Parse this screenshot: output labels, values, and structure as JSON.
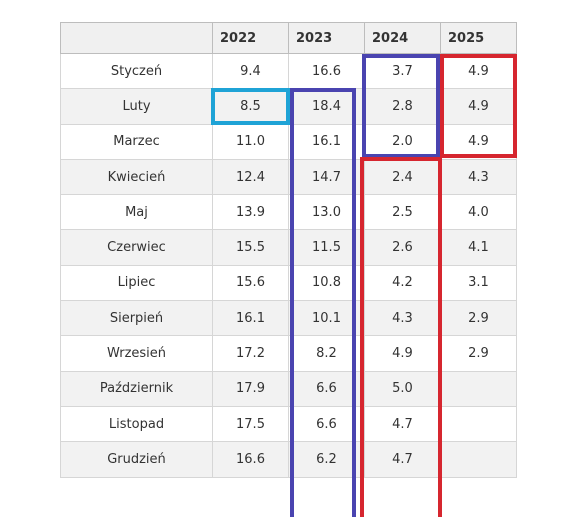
{
  "table": {
    "headers": [
      "",
      "2022",
      "2023",
      "2024",
      "2025"
    ],
    "rows": [
      {
        "month": "Styczeń",
        "values": [
          "9.4",
          "16.6",
          "3.7",
          "4.9"
        ]
      },
      {
        "month": "Luty",
        "values": [
          "8.5",
          "18.4",
          "2.8",
          "4.9"
        ]
      },
      {
        "month": "Marzec",
        "values": [
          "11.0",
          "16.1",
          "2.0",
          "4.9"
        ]
      },
      {
        "month": "Kwiecień",
        "values": [
          "12.4",
          "14.7",
          "2.4",
          "4.3"
        ]
      },
      {
        "month": "Maj",
        "values": [
          "13.9",
          "13.0",
          "2.5",
          "4.0"
        ]
      },
      {
        "month": "Czerwiec",
        "values": [
          "15.5",
          "11.5",
          "2.6",
          "4.1"
        ]
      },
      {
        "month": "Lipiec",
        "values": [
          "15.6",
          "10.8",
          "4.2",
          "3.1"
        ]
      },
      {
        "month": "Sierpień",
        "values": [
          "16.1",
          "10.1",
          "4.3",
          "2.9"
        ]
      },
      {
        "month": "Wrzesień",
        "values": [
          "17.2",
          "8.2",
          "4.9",
          "2.9"
        ]
      },
      {
        "month": "Październik",
        "values": [
          "17.9",
          "6.6",
          "5.0",
          ""
        ]
      },
      {
        "month": "Listopad",
        "values": [
          "17.5",
          "6.6",
          "4.7",
          ""
        ]
      },
      {
        "month": "Grudzień",
        "values": [
          "16.6",
          "6.2",
          "4.7",
          ""
        ]
      }
    ]
  },
  "highlights": {
    "cyan": "#1fa3d6",
    "blue": "#4a44b0",
    "red": "#d6262f"
  }
}
